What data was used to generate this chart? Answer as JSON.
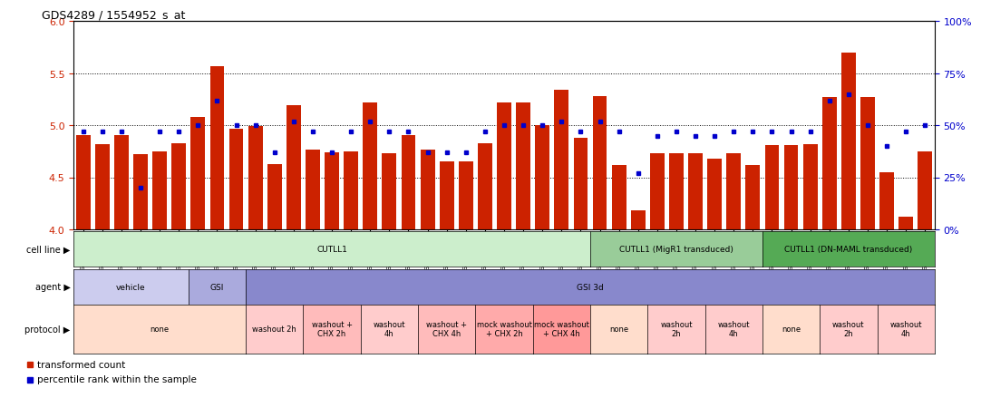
{
  "title": "GDS4289 / 1554952_s_at",
  "gsm_ids": [
    "GSM731500",
    "GSM731501",
    "GSM731502",
    "GSM731503",
    "GSM731504",
    "GSM731505",
    "GSM731518",
    "GSM731519",
    "GSM731520",
    "GSM731506",
    "GSM731507",
    "GSM731508",
    "GSM731509",
    "GSM731510",
    "GSM731511",
    "GSM731512",
    "GSM731513",
    "GSM731514",
    "GSM731515",
    "GSM731516",
    "GSM731517",
    "GSM731521",
    "GSM731522",
    "GSM731523",
    "GSM731524",
    "GSM731525",
    "GSM731526",
    "GSM731527",
    "GSM731528",
    "GSM731529",
    "GSM731531",
    "GSM731532",
    "GSM731533",
    "GSM731534",
    "GSM731535",
    "GSM731536",
    "GSM731537",
    "GSM731538",
    "GSM731539",
    "GSM731540",
    "GSM731541",
    "GSM731542",
    "GSM731543",
    "GSM731544",
    "GSM731545"
  ],
  "bar_values": [
    4.91,
    4.82,
    4.91,
    4.72,
    4.75,
    4.83,
    5.08,
    5.57,
    4.97,
    4.99,
    4.63,
    5.19,
    4.77,
    4.74,
    4.75,
    5.22,
    4.73,
    4.91,
    4.77,
    4.65,
    4.65,
    4.83,
    5.22,
    5.22,
    5.0,
    5.34,
    4.88,
    5.28,
    4.62,
    4.18,
    4.73,
    4.73,
    4.73,
    4.68,
    4.73,
    4.62,
    4.81,
    4.81,
    4.82,
    5.27,
    5.7,
    5.27,
    4.55,
    4.12,
    4.75
  ],
  "percentile_values": [
    47,
    47,
    47,
    20,
    47,
    47,
    50,
    62,
    50,
    50,
    37,
    52,
    47,
    37,
    47,
    52,
    47,
    47,
    37,
    37,
    37,
    47,
    50,
    50,
    50,
    52,
    47,
    52,
    47,
    27,
    45,
    47,
    45,
    45,
    47,
    47,
    47,
    47,
    47,
    62,
    65,
    50,
    40,
    47,
    50
  ],
  "ylim": [
    4.0,
    6.0
  ],
  "yticks": [
    4.0,
    4.5,
    5.0,
    5.5,
    6.0
  ],
  "right_yticks": [
    0,
    25,
    50,
    75,
    100
  ],
  "bar_color": "#cc2200",
  "dot_color": "#0000cc",
  "background_color": "#ffffff",
  "cell_line_groups": [
    {
      "label": "CUTLL1",
      "start": 0,
      "end": 27,
      "color": "#cceecc"
    },
    {
      "label": "CUTLL1 (MigR1 transduced)",
      "start": 27,
      "end": 36,
      "color": "#99cc99"
    },
    {
      "label": "CUTLL1 (DN-MAML transduced)",
      "start": 36,
      "end": 45,
      "color": "#55aa55"
    }
  ],
  "agent_groups": [
    {
      "label": "vehicle",
      "start": 0,
      "end": 6,
      "color": "#ccccee"
    },
    {
      "label": "GSI",
      "start": 6,
      "end": 9,
      "color": "#aaaadd"
    },
    {
      "label": "GSI 3d",
      "start": 9,
      "end": 45,
      "color": "#8888cc"
    }
  ],
  "protocol_groups": [
    {
      "label": "none",
      "start": 0,
      "end": 9,
      "color": "#ffddcc"
    },
    {
      "label": "washout 2h",
      "start": 9,
      "end": 12,
      "color": "#ffcccc"
    },
    {
      "label": "washout +\nCHX 2h",
      "start": 12,
      "end": 15,
      "color": "#ffbbbb"
    },
    {
      "label": "washout\n4h",
      "start": 15,
      "end": 18,
      "color": "#ffcccc"
    },
    {
      "label": "washout +\nCHX 4h",
      "start": 18,
      "end": 21,
      "color": "#ffbbbb"
    },
    {
      "label": "mock washout\n+ CHX 2h",
      "start": 21,
      "end": 24,
      "color": "#ffaaaa"
    },
    {
      "label": "mock washout\n+ CHX 4h",
      "start": 24,
      "end": 27,
      "color": "#ff9999"
    },
    {
      "label": "none",
      "start": 27,
      "end": 30,
      "color": "#ffddcc"
    },
    {
      "label": "washout\n2h",
      "start": 30,
      "end": 33,
      "color": "#ffcccc"
    },
    {
      "label": "washout\n4h",
      "start": 33,
      "end": 36,
      "color": "#ffcccc"
    },
    {
      "label": "none",
      "start": 36,
      "end": 39,
      "color": "#ffddcc"
    },
    {
      "label": "washout\n2h",
      "start": 39,
      "end": 42,
      "color": "#ffcccc"
    },
    {
      "label": "washout\n4h",
      "start": 42,
      "end": 45,
      "color": "#ffcccc"
    }
  ],
  "row_labels": [
    "cell line",
    "agent",
    "protocol"
  ],
  "legend_items": [
    {
      "label": "transformed count",
      "color": "#cc2200"
    },
    {
      "label": "percentile rank within the sample",
      "color": "#0000cc"
    }
  ]
}
